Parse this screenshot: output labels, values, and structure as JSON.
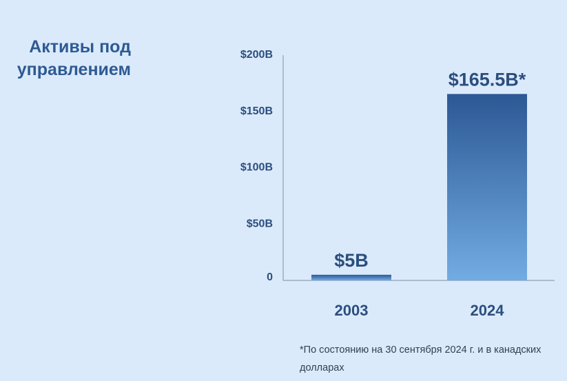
{
  "title_lines": [
    "Активы под",
    "управлением"
  ],
  "footnote": "*По состоянию на 30 сентября 2024 г. и в канадских долларах",
  "colors": {
    "background": "#dbeafb",
    "title": "#2e5a93",
    "axis_labels": "#2b4e7e",
    "bar_top": "#2c5894",
    "bar_bottom": "#72ace2"
  },
  "chart_data": {
    "type": "bar",
    "categories": [
      "2003",
      "2024"
    ],
    "values": [
      5,
      165.5
    ],
    "data_labels": [
      "$5B",
      "$165.5B*"
    ],
    "yticks": [
      {
        "value": 0,
        "label": "0"
      },
      {
        "value": 50,
        "label": "$50B"
      },
      {
        "value": 100,
        "label": "$100B"
      },
      {
        "value": 150,
        "label": "$150B"
      },
      {
        "value": 200,
        "label": "$200B"
      }
    ],
    "ylim": [
      0,
      200
    ],
    "grid": false,
    "legend": "none"
  }
}
